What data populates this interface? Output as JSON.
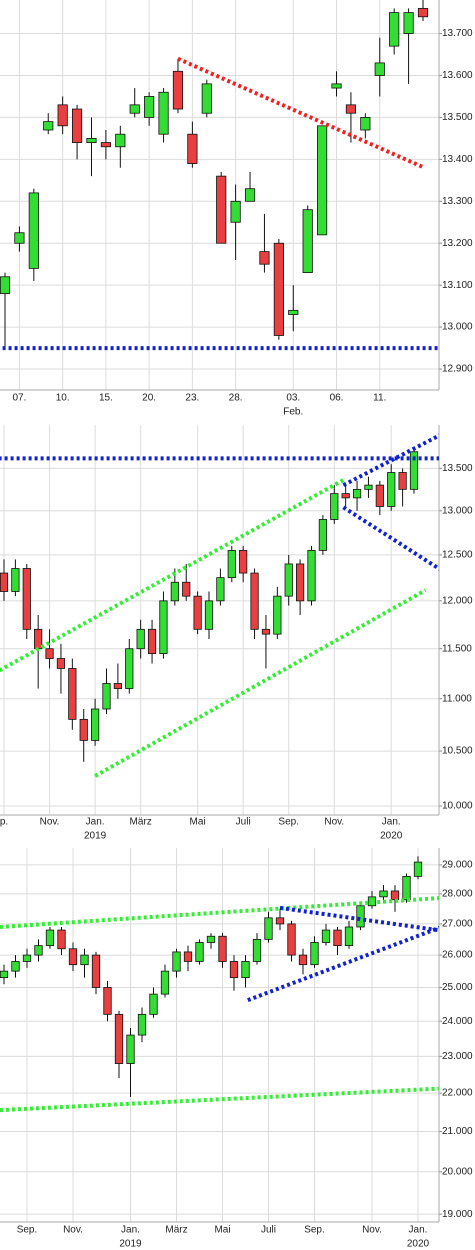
{
  "chart_data": [
    {
      "type": "candlestick",
      "log": false,
      "grid": true,
      "up_color": "#33dd33",
      "down_color": "#e84040",
      "categories": [
        null,
        "07.",
        null,
        null,
        "10.",
        null,
        null,
        "15.",
        null,
        null,
        "20.",
        null,
        null,
        "23.",
        null,
        null,
        "28.",
        null,
        null,
        null,
        "03.",
        null,
        null,
        "06.",
        null,
        null,
        "11.",
        null,
        null,
        null
      ],
      "sublabels": [
        null,
        null,
        null,
        null,
        null,
        null,
        null,
        null,
        null,
        null,
        null,
        null,
        null,
        null,
        null,
        null,
        null,
        null,
        null,
        null,
        "Feb.",
        null,
        null,
        null,
        null,
        null,
        null,
        null,
        null,
        null
      ],
      "open": [
        13080,
        13200,
        13140,
        13470,
        13530,
        13520,
        13440,
        13440,
        13430,
        13510,
        13500,
        13460,
        13610,
        13460,
        13510,
        13360,
        13250,
        13300,
        13180,
        13200,
        13030,
        13130,
        13220,
        13570,
        13530,
        13470,
        13600,
        13670,
        13700,
        13760
      ],
      "close": [
        13120,
        13225,
        13320,
        13490,
        13480,
        13440,
        13450,
        13430,
        13460,
        13530,
        13550,
        13560,
        13520,
        13390,
        13580,
        13200,
        13300,
        13330,
        13150,
        12980,
        13040,
        13280,
        13480,
        13580,
        13510,
        13500,
        13630,
        13750,
        13750,
        13740
      ],
      "high": [
        13130,
        13240,
        13330,
        13510,
        13550,
        13530,
        13500,
        13470,
        13480,
        13570,
        13560,
        13570,
        13640,
        13490,
        13590,
        13370,
        13340,
        13370,
        13270,
        13210,
        13100,
        13290,
        13480,
        13610,
        13560,
        13510,
        13690,
        13760,
        13760,
        13780
      ],
      "low": [
        12950,
        13180,
        13110,
        13460,
        13460,
        13400,
        13360,
        13400,
        13380,
        13500,
        13480,
        13440,
        13510,
        13380,
        13500,
        13200,
        13160,
        13300,
        13130,
        12970,
        12990,
        13130,
        13220,
        13550,
        13440,
        13450,
        13550,
        13650,
        13580,
        13730
      ],
      "ylim": [
        12850,
        13780
      ],
      "yticks": [
        {
          "value": 12900,
          "label": "12.900"
        },
        {
          "value": 13000,
          "label": "13.000"
        },
        {
          "value": 13100,
          "label": "13.100"
        },
        {
          "value": 13200,
          "label": "13.200"
        },
        {
          "value": 13300,
          "label": "13.300"
        },
        {
          "value": 13400,
          "label": "13.400"
        },
        {
          "value": 13500,
          "label": "13.500"
        },
        {
          "value": 13600,
          "label": "13.600"
        },
        {
          "value": 13700,
          "label": "13.700"
        }
      ],
      "trendlines": [
        {
          "color": "#ee2222",
          "x": [
            12,
            29.1
          ],
          "y": [
            13640,
            13380
          ]
        },
        {
          "color": "#1122cc",
          "x": [
            -1,
            31
          ],
          "y": [
            12950,
            12950
          ]
        }
      ]
    },
    {
      "type": "candlestick",
      "log": true,
      "grid": true,
      "up_color": "#33dd33",
      "down_color": "#e84040",
      "categories": [
        "p.",
        null,
        null,
        null,
        "Nov.",
        null,
        null,
        null,
        "Jan.",
        null,
        null,
        null,
        "März",
        null,
        null,
        null,
        null,
        "Mai",
        null,
        null,
        null,
        "Juli",
        null,
        null,
        null,
        "Sep.",
        null,
        null,
        null,
        "Nov.",
        null,
        null,
        null,
        null,
        "Jan.",
        null,
        null
      ],
      "sublabels": [
        null,
        null,
        null,
        null,
        null,
        null,
        null,
        null,
        "2019",
        null,
        null,
        null,
        null,
        null,
        null,
        null,
        null,
        null,
        null,
        null,
        null,
        null,
        null,
        null,
        null,
        null,
        null,
        null,
        null,
        null,
        null,
        null,
        null,
        null,
        "2020",
        null,
        null
      ],
      "open": [
        12300,
        12100,
        12350,
        11700,
        11500,
        11400,
        11300,
        10800,
        10600,
        10900,
        11150,
        11100,
        11500,
        11700,
        11450,
        12000,
        12200,
        12050,
        11700,
        12000,
        12250,
        12550,
        12300,
        11700,
        11650,
        12050,
        12400,
        12000,
        12550,
        12900,
        13200,
        13150,
        13250,
        13300,
        13050,
        13450,
        13250
      ],
      "close": [
        12100,
        12350,
        11700,
        11500,
        11400,
        11300,
        10800,
        10600,
        10900,
        11150,
        11100,
        11500,
        11700,
        11450,
        12000,
        12200,
        12050,
        11700,
        12000,
        12250,
        12550,
        12300,
        11700,
        11650,
        12050,
        12400,
        12000,
        12550,
        12900,
        13200,
        13150,
        13250,
        13300,
        13050,
        13450,
        13250,
        13700
      ],
      "high": [
        12450,
        12450,
        12400,
        11850,
        11700,
        11550,
        11400,
        10900,
        11000,
        11300,
        11350,
        11600,
        11800,
        11800,
        12100,
        12350,
        12400,
        12100,
        12100,
        12350,
        12600,
        12600,
        12350,
        11850,
        12150,
        12500,
        12450,
        12600,
        12950,
        13300,
        13300,
        13350,
        13400,
        13350,
        13550,
        13500,
        13750
      ],
      "low": [
        12000,
        12050,
        11600,
        11100,
        11300,
        11050,
        10700,
        10400,
        10550,
        10850,
        11000,
        11050,
        11400,
        11350,
        11400,
        11950,
        12000,
        11650,
        11600,
        11950,
        12200,
        12200,
        11600,
        11300,
        11600,
        11950,
        11850,
        11950,
        12500,
        12850,
        13050,
        13000,
        13150,
        12950,
        13000,
        13050,
        13200
      ],
      "ylim": [
        9920,
        14030
      ],
      "yticks": [
        {
          "value": 10000,
          "label": "10.000"
        },
        {
          "value": 10500,
          "label": "10.500"
        },
        {
          "value": 11000,
          "label": "11.000"
        },
        {
          "value": 11500,
          "label": "11.500"
        },
        {
          "value": 12000,
          "label": "12.000"
        },
        {
          "value": 12500,
          "label": "12.500"
        },
        {
          "value": 13000,
          "label": "13.000"
        },
        {
          "value": 13500,
          "label": "13.500"
        }
      ],
      "trendlines": [
        {
          "color": "#33ee33",
          "x": [
            -0.4,
            29.8
          ],
          "y": [
            11280,
            13360
          ]
        },
        {
          "color": "#33ee33",
          "x": [
            8,
            37
          ],
          "y": [
            10270,
            12113
          ]
        },
        {
          "color": "#1122cc",
          "x": [
            -1,
            38.5
          ],
          "y": [
            13620,
            13620
          ]
        },
        {
          "color": "#1122cc",
          "x": [
            29.8,
            39.6
          ],
          "y": [
            13300,
            14000
          ]
        },
        {
          "color": "#1122cc",
          "x": [
            29.8,
            38.3
          ],
          "y": [
            13040,
            12340
          ]
        }
      ]
    },
    {
      "type": "candlestick",
      "log": true,
      "grid": true,
      "up_color": "#33dd33",
      "down_color": "#e84040",
      "categories": [
        null,
        null,
        "Sep.",
        null,
        null,
        null,
        "Nov.",
        null,
        null,
        null,
        null,
        "Jan.",
        null,
        null,
        null,
        "März",
        null,
        null,
        null,
        "Mai",
        null,
        null,
        null,
        "Juli",
        null,
        null,
        null,
        "Sep.",
        null,
        null,
        null,
        null,
        "Nov.",
        null,
        null,
        null,
        "Jan."
      ],
      "sublabels": [
        null,
        null,
        null,
        null,
        null,
        null,
        null,
        null,
        null,
        null,
        null,
        "2019",
        null,
        null,
        null,
        null,
        null,
        null,
        null,
        null,
        null,
        null,
        null,
        null,
        null,
        null,
        null,
        null,
        null,
        null,
        null,
        null,
        null,
        null,
        null,
        null,
        "2020"
      ],
      "open": [
        25300,
        25500,
        25800,
        26000,
        26300,
        26800,
        26200,
        25700,
        26000,
        25000,
        24200,
        22800,
        23600,
        24200,
        24800,
        25500,
        26100,
        25800,
        26400,
        26600,
        25800,
        25300,
        25800,
        26500,
        27200,
        27000,
        26000,
        25700,
        26400,
        26800,
        26300,
        26900,
        27600,
        27900,
        28100,
        27800,
        28600
      ],
      "close": [
        25500,
        25800,
        26000,
        26300,
        26800,
        26200,
        25700,
        26000,
        25000,
        24200,
        22800,
        23600,
        24200,
        24800,
        25500,
        26100,
        25800,
        26400,
        26600,
        25800,
        25300,
        25800,
        26500,
        27200,
        27000,
        26000,
        25700,
        26400,
        26800,
        26300,
        26900,
        27600,
        27900,
        28100,
        27800,
        28600,
        29100
      ],
      "high": [
        25700,
        26000,
        26200,
        26500,
        26900,
        26900,
        26400,
        26200,
        26100,
        25200,
        24300,
        23800,
        24400,
        25000,
        25700,
        26200,
        26300,
        26500,
        26700,
        26700,
        26000,
        26000,
        26700,
        27400,
        27500,
        27100,
        26200,
        26600,
        27000,
        26900,
        27100,
        27700,
        28100,
        28300,
        28300,
        28700,
        29300
      ],
      "low": [
        25100,
        25300,
        25600,
        25800,
        26200,
        26000,
        25500,
        25300,
        24800,
        24000,
        22400,
        21900,
        23400,
        24100,
        24700,
        25300,
        25500,
        25700,
        26200,
        25600,
        24900,
        25000,
        25700,
        26400,
        26800,
        25800,
        25400,
        25600,
        26300,
        26000,
        26200,
        26800,
        27500,
        27700,
        27400,
        27700,
        28500
      ],
      "ylim": [
        18820,
        29600
      ],
      "yticks": [
        {
          "value": 19000,
          "label": "19.000"
        },
        {
          "value": 20000,
          "label": "20.000"
        },
        {
          "value": 21000,
          "label": "21.000"
        },
        {
          "value": 22000,
          "label": "22.000"
        },
        {
          "value": 23000,
          "label": "23.000"
        },
        {
          "value": 24000,
          "label": "24.000"
        },
        {
          "value": 25000,
          "label": "25.000"
        },
        {
          "value": 26000,
          "label": "26.000"
        },
        {
          "value": 27000,
          "label": "27.000"
        },
        {
          "value": 28000,
          "label": "28.000"
        },
        {
          "value": 29000,
          "label": "29.000"
        }
      ],
      "trendlines": [
        {
          "color": "#33ee33",
          "x": [
            -0.35,
            37.9
          ],
          "y": [
            26900,
            27860
          ]
        },
        {
          "color": "#33ee33",
          "x": [
            -0.35,
            37.9
          ],
          "y": [
            21550,
            22120
          ]
        },
        {
          "color": "#1122cc",
          "x": [
            21.2,
            37.9
          ],
          "y": [
            24620,
            26880
          ]
        },
        {
          "color": "#1122cc",
          "x": [
            24,
            37.9
          ],
          "y": [
            27530,
            26790
          ]
        }
      ]
    }
  ]
}
